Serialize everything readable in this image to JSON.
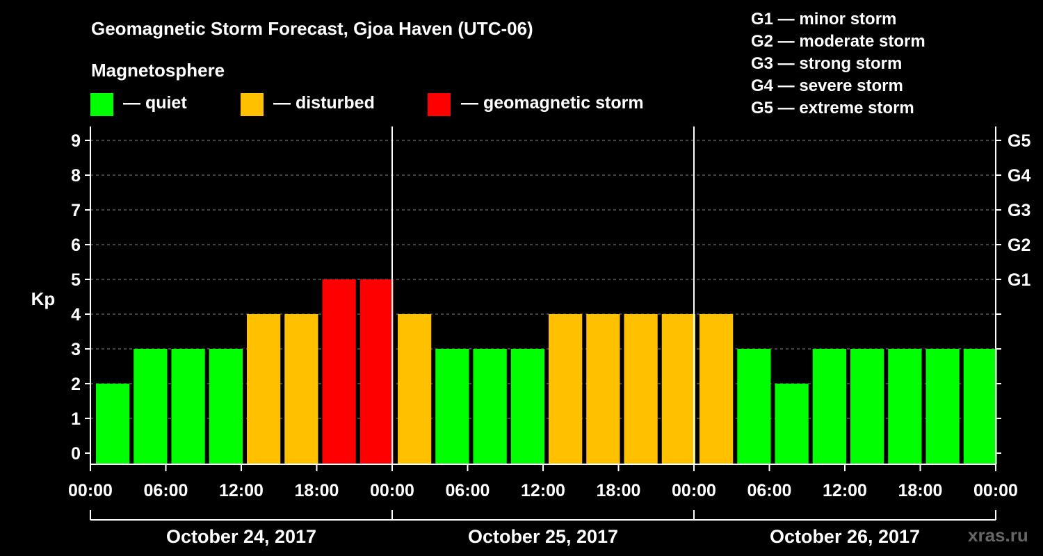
{
  "title": "Geomagnetic Storm Forecast, Gjoa Haven (UTC-06)",
  "legend": {
    "heading": "Magnetosphere",
    "items": [
      {
        "label": "— quiet",
        "color": "#00ff00"
      },
      {
        "label": "— disturbed",
        "color": "#ffc000"
      },
      {
        "label": "— geomagnetic storm",
        "color": "#ff0000"
      }
    ]
  },
  "g_scale": [
    "G1 — minor storm",
    "G2 — moderate storm",
    "G3 — strong storm",
    "G4 — severe storm",
    "G5 — extreme storm"
  ],
  "watermark": "xras.ru",
  "colors": {
    "quiet": "#00ff00",
    "disturbed": "#ffc000",
    "storm": "#ff0000",
    "background": "#000000",
    "foreground": "#ffffff"
  },
  "chart_data": {
    "type": "bar",
    "title": "Geomagnetic Storm Forecast, Gjoa Haven (UTC-06)",
    "ylabel": "Kp",
    "ylim": [
      0,
      9
    ],
    "yticks": [
      "0",
      "1",
      "2",
      "3",
      "4",
      "5",
      "6",
      "7",
      "8",
      "9"
    ],
    "right_ticks": [
      {
        "kp": 5,
        "label": "G1"
      },
      {
        "kp": 6,
        "label": "G2"
      },
      {
        "kp": 7,
        "label": "G3"
      },
      {
        "kp": 8,
        "label": "G4"
      },
      {
        "kp": 9,
        "label": "G5"
      }
    ],
    "xtick_labels": [
      "00:00",
      "06:00",
      "12:00",
      "18:00",
      "00:00",
      "06:00",
      "12:00",
      "18:00",
      "00:00",
      "06:00",
      "12:00",
      "18:00",
      "00:00"
    ],
    "days": [
      "October 24, 2017",
      "October 25, 2017",
      "October 26, 2017"
    ],
    "interval_hours": 3,
    "values": [
      2,
      3,
      3,
      3,
      4,
      4,
      5,
      5,
      4,
      3,
      3,
      3,
      4,
      4,
      4,
      4,
      4,
      3,
      2,
      3,
      3,
      3,
      3,
      3
    ],
    "grid": "dashed-horizontal"
  }
}
